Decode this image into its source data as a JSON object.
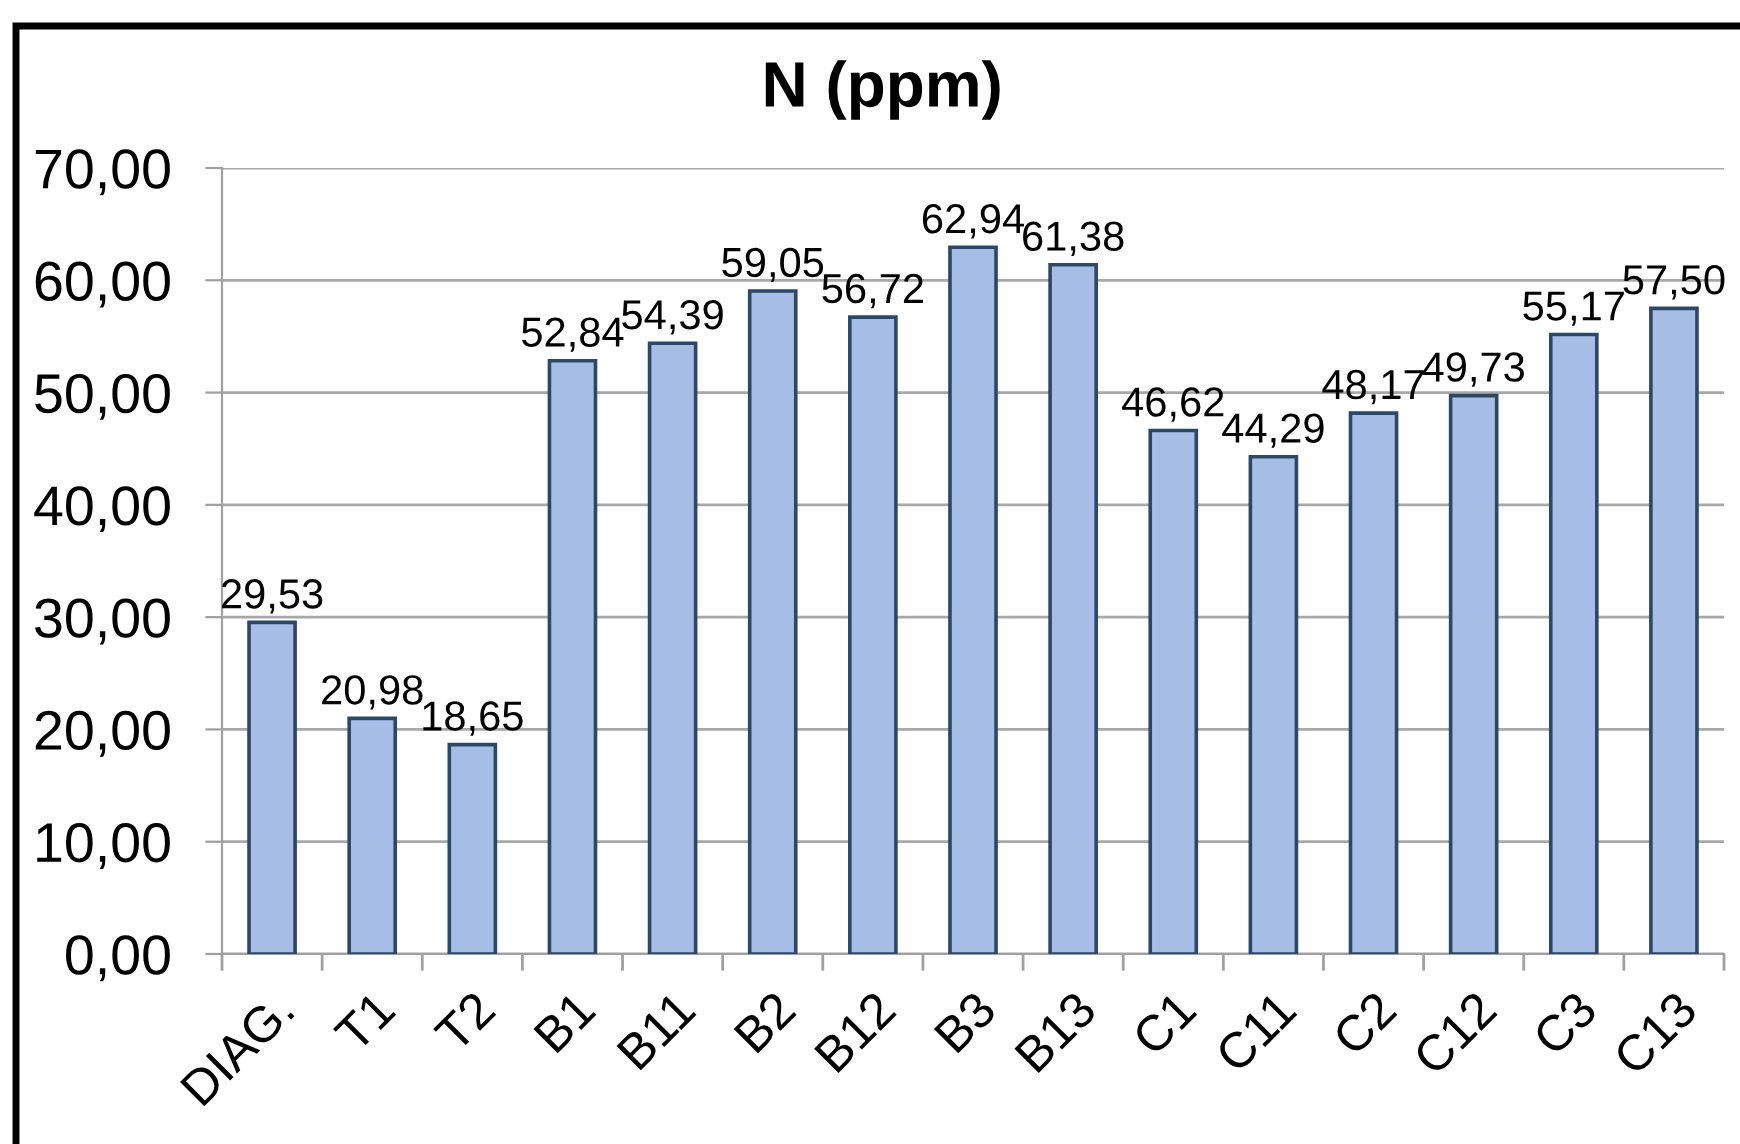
{
  "chart_data": {
    "type": "bar",
    "title": "N (ppm)",
    "categories": [
      "DIAG.",
      "T1",
      "T2",
      "B1",
      "B11",
      "B2",
      "B12",
      "B3",
      "B13",
      "C1",
      "C11",
      "C2",
      "C12",
      "C3",
      "C13"
    ],
    "values": [
      29.53,
      20.98,
      18.65,
      52.84,
      54.39,
      59.05,
      56.72,
      62.94,
      61.38,
      46.62,
      44.29,
      48.17,
      49.73,
      55.17,
      57.5
    ],
    "value_labels": [
      "29,53",
      "20,98",
      "18,65",
      "52,84",
      "54,39",
      "59,05",
      "56,72",
      "62,94",
      "61,38",
      "46,62",
      "44,29",
      "48,17",
      "49,73",
      "55,17",
      "57,50"
    ],
    "color": "#a6bde5",
    "ylim": [
      0,
      70
    ],
    "yticks": [
      {
        "value": 0,
        "label": "0,00"
      },
      {
        "value": 10,
        "label": "10,00"
      },
      {
        "value": 20,
        "label": "20,00"
      },
      {
        "value": 30,
        "label": "30,00"
      },
      {
        "value": 40,
        "label": "40,00"
      },
      {
        "value": 50,
        "label": "50,00"
      },
      {
        "value": 60,
        "label": "60,00"
      },
      {
        "value": 70,
        "label": "70,00"
      }
    ],
    "grid": "y",
    "legend": false
  }
}
